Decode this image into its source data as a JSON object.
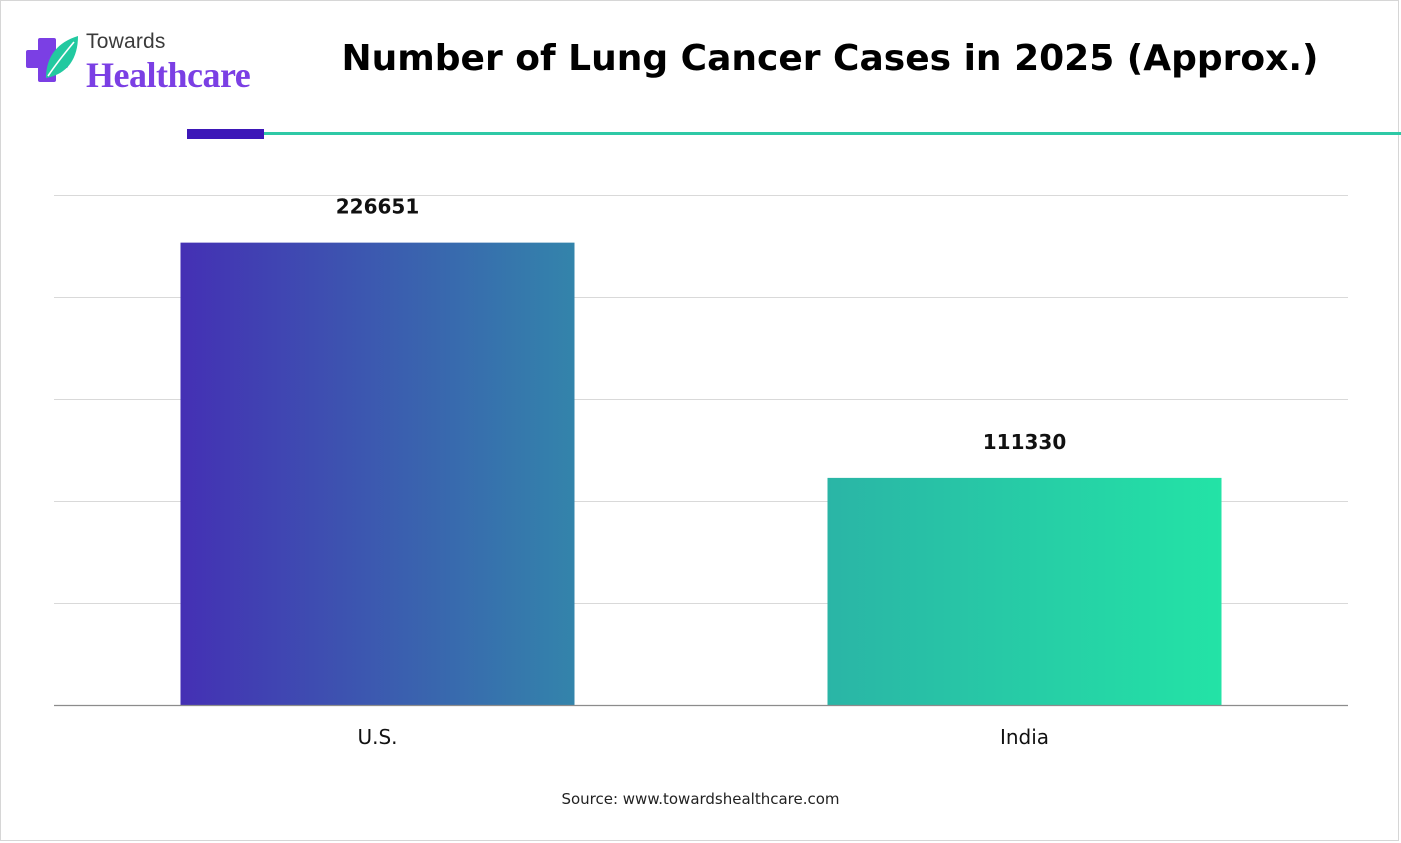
{
  "brand": {
    "line1": "Towards",
    "line2": "Healthcare",
    "icon": "medical-cross-leaf-icon",
    "colors": {
      "cross": "#7b3fe4",
      "leaf": "#22c9a0",
      "text": "#7b3fe4"
    }
  },
  "header": {
    "title": "Number of Lung Cancer Cases in 2025 (Approx.)",
    "accent_colors": {
      "bar": "#3d17b8",
      "line": "#2ec9a6"
    }
  },
  "chart_data": {
    "type": "bar",
    "title": "Number of Lung Cancer Cases in 2025 (Approx.)",
    "categories": [
      "U.S.",
      "India"
    ],
    "values": [
      226651,
      111330
    ],
    "ylim": [
      0,
      250000
    ],
    "grid": true,
    "gridlines": 5,
    "xlabel": "",
    "ylabel": "",
    "data_labels": [
      "226651",
      "111330"
    ],
    "bar_gradients": [
      [
        "#4430b4",
        "#3384ab"
      ],
      [
        "#2ab5a6",
        "#23e3a6"
      ]
    ]
  },
  "footer": {
    "source": "Source: www.towardshealthcare.com"
  }
}
